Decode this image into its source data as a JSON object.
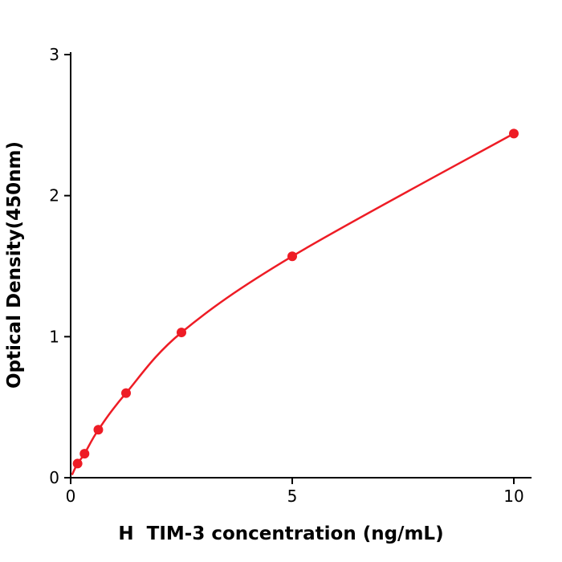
{
  "chart_data": {
    "type": "scatter",
    "title": "",
    "xlabel": "H  TIM-3 concentration (ng/mL)",
    "ylabel": "Optical Density(450nm)",
    "x": [
      0.156,
      0.313,
      0.625,
      1.25,
      2.5,
      5,
      10
    ],
    "y": [
      0.1,
      0.17,
      0.34,
      0.6,
      1.03,
      1.57,
      2.44
    ],
    "curve_start": {
      "x": 0.03,
      "y": 0.02
    },
    "xlim": [
      0,
      10.4
    ],
    "ylim": [
      0,
      3
    ],
    "xticks": [
      0,
      5,
      10
    ],
    "yticks": [
      0,
      1,
      2,
      3
    ],
    "marker_color": "#ee1c25",
    "line_color": "#ee1c25",
    "axis_color": "#000000",
    "grid": false,
    "legend": "none",
    "fit_curve": true
  }
}
